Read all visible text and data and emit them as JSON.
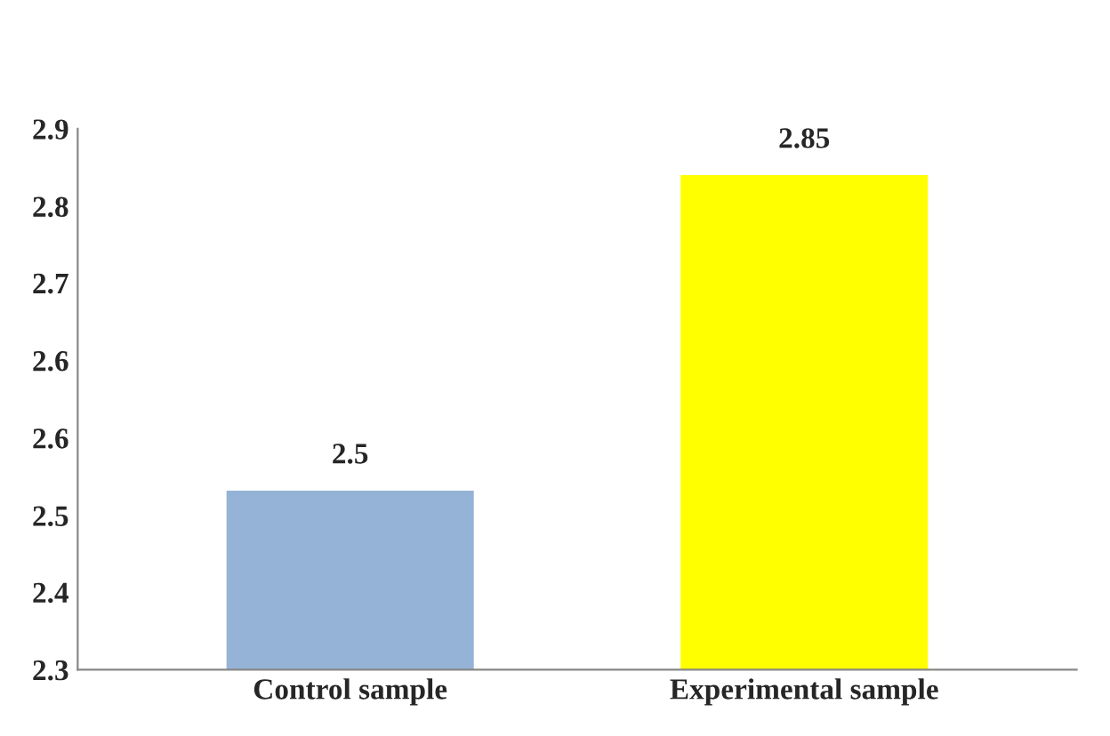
{
  "chart_data": {
    "type": "bar",
    "categories": [
      "Control sample",
      "Experimental sample"
    ],
    "values": [
      2.5,
      2.85
    ],
    "colors": [
      "#95b3d7",
      "#ffff00"
    ],
    "ylim": [
      2.3,
      2.9
    ],
    "yticks": [
      2.3,
      {
        "value": 2.386,
        "label": "2.4"
      },
      {
        "value": 2.471,
        "label": "2.5"
      },
      {
        "value": 2.557,
        "label": "2.6"
      },
      {
        "value": 2.643,
        "label": "2.6"
      },
      {
        "value": 2.729,
        "label": "2.7"
      },
      {
        "value": 2.814,
        "label": "2.8"
      },
      2.9
    ],
    "data_labels": true,
    "grid": false,
    "legend": false
  }
}
